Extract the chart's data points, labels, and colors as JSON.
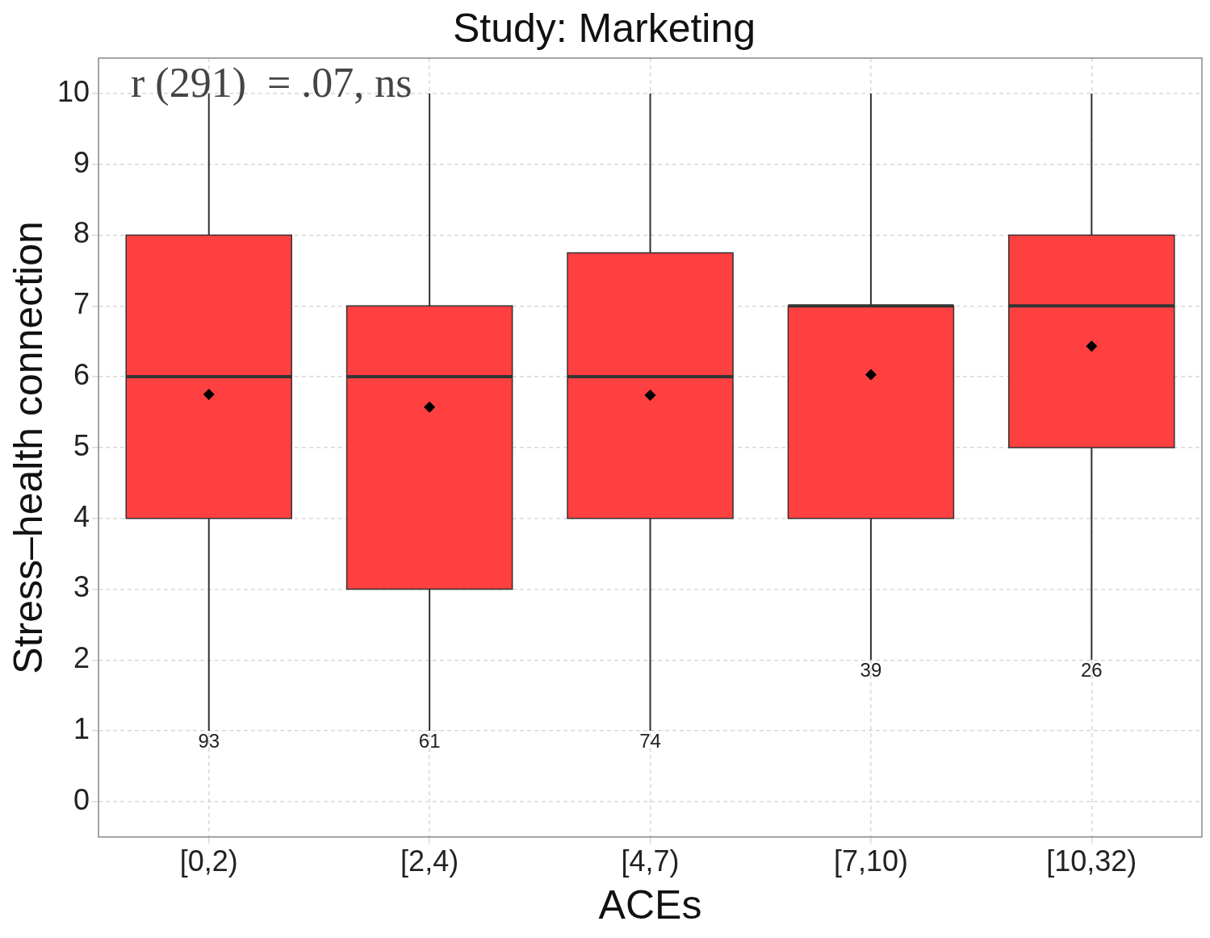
{
  "chart_data": {
    "type": "box",
    "title": "Study: Marketing",
    "xlabel": "ACEs",
    "ylabel": "Stress–health connection",
    "categories": [
      "[0,2)",
      "[2,4)",
      "[4,7)",
      "[7,10)",
      "[10,32)"
    ],
    "series": [
      {
        "color": "#fe4040",
        "boxes": [
          {
            "low": 1,
            "q1": 4,
            "median": 6,
            "q3": 8,
            "high": 10,
            "mean": 5.75
          },
          {
            "low": 1,
            "q1": 3,
            "median": 6,
            "q3": 7,
            "high": 10,
            "mean": 5.57
          },
          {
            "low": 1,
            "q1": 4,
            "median": 6,
            "q3": 7.75,
            "high": 10,
            "mean": 5.74
          },
          {
            "low": 2,
            "q1": 4,
            "median": 7,
            "q3": 7,
            "high": 10,
            "mean": 6.03
          },
          {
            "low": 2,
            "q1": 5,
            "median": 7,
            "q3": 8,
            "high": 10,
            "mean": 6.43
          }
        ]
      }
    ],
    "ylim": [
      -0.5,
      10.5
    ],
    "yticks": [
      0,
      1,
      2,
      3,
      4,
      5,
      6,
      7,
      8,
      9,
      10
    ],
    "grid": true,
    "marker": "diamond",
    "annotations": [
      "r (291)  = .07, ns",
      {
        "text": "93",
        "x": "[0,2)",
        "y": 1
      },
      {
        "text": "61",
        "x": "[2,4)",
        "y": 1
      },
      {
        "text": "74",
        "x": "[4,7)",
        "y": 1
      },
      {
        "text": "39",
        "x": "[7,10)",
        "y": 2
      },
      {
        "text": "26",
        "x": "[10,32)",
        "y": 2
      }
    ]
  }
}
